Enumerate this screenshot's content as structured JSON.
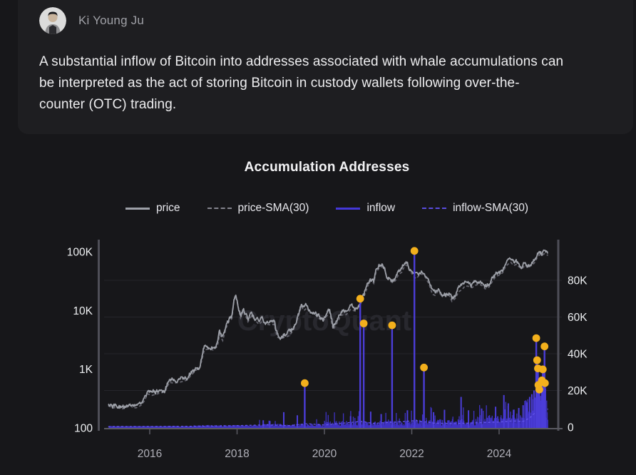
{
  "theme": {
    "page_bg": "#17171a",
    "card_bg": "#1e1e21",
    "text_primary": "#ededef",
    "text_secondary": "#9fa0a6",
    "title_color": "#f3f3f5",
    "legend_text": "#e9e9ee",
    "watermark_color": "#28282e"
  },
  "post": {
    "author": "Ki Young Ju",
    "text_lines": [
      "A substantial inflow of Bitcoin into addresses associated with whale accumulations can",
      "be interpreted as the act of storing Bitcoin in custody wallets following over-the-",
      "counter (OTC) trading."
    ]
  },
  "chart": {
    "title": "Accumulation Addresses",
    "watermark": "CryptoQuant",
    "legend": [
      {
        "label": "price",
        "color": "#9da0a8",
        "style": "solid"
      },
      {
        "label": "price-SMA(30)",
        "color": "#84848e",
        "style": "dashed"
      },
      {
        "label": "inflow",
        "color": "#4438d8",
        "style": "solid"
      },
      {
        "label": "inflow-SMA(30)",
        "color": "#5a4ce0",
        "style": "dashed"
      }
    ]
  },
  "chart_data": {
    "type": "line+bar",
    "title": "Accumulation Addresses",
    "x_axis": {
      "range": [
        2015.0,
        2025.15
      ],
      "ticks": [
        2016,
        2018,
        2020,
        2022,
        2024
      ],
      "labels": [
        "2016",
        "2018",
        "2020",
        "2022",
        "2024"
      ]
    },
    "left_axis": {
      "scale": "log",
      "series": "price",
      "ticks": [
        {
          "value": 100,
          "label": "100"
        },
        {
          "value": 1000,
          "label": "1K"
        },
        {
          "value": 10000,
          "label": "10K"
        },
        {
          "value": 100000,
          "label": "100K"
        }
      ]
    },
    "right_axis": {
      "scale": "linear",
      "series": "inflow",
      "ticks": [
        {
          "value": 0,
          "label": "0"
        },
        {
          "value": 20000,
          "label": "20K"
        },
        {
          "value": 40000,
          "label": "40K"
        },
        {
          "value": 60000,
          "label": "60K"
        },
        {
          "value": 80000,
          "label": "80K"
        }
      ]
    },
    "price_series": [
      [
        2015.05,
        265
      ],
      [
        2015.15,
        240
      ],
      [
        2015.25,
        250
      ],
      [
        2015.35,
        232
      ],
      [
        2015.45,
        240
      ],
      [
        2015.55,
        272
      ],
      [
        2015.62,
        240
      ],
      [
        2015.7,
        245
      ],
      [
        2015.8,
        268
      ],
      [
        2015.88,
        320
      ],
      [
        2015.95,
        420
      ],
      [
        2016.05,
        395
      ],
      [
        2016.15,
        415
      ],
      [
        2016.25,
        435
      ],
      [
        2016.35,
        455
      ],
      [
        2016.45,
        660
      ],
      [
        2016.55,
        640
      ],
      [
        2016.65,
        655
      ],
      [
        2016.75,
        680
      ],
      [
        2016.85,
        720
      ],
      [
        2016.95,
        870
      ],
      [
        2017.05,
        1050
      ],
      [
        2017.15,
        1180
      ],
      [
        2017.25,
        2350
      ],
      [
        2017.35,
        2450
      ],
      [
        2017.45,
        2350
      ],
      [
        2017.55,
        2700
      ],
      [
        2017.6,
        4300
      ],
      [
        2017.67,
        3400
      ],
      [
        2017.75,
        5600
      ],
      [
        2017.82,
        7300
      ],
      [
        2017.88,
        8000
      ],
      [
        2017.93,
        16800
      ],
      [
        2017.97,
        19200
      ],
      [
        2018.02,
        13500
      ],
      [
        2018.08,
        8300
      ],
      [
        2018.15,
        11000
      ],
      [
        2018.25,
        7100
      ],
      [
        2018.33,
        8900
      ],
      [
        2018.42,
        7500
      ],
      [
        2018.5,
        6400
      ],
      [
        2018.58,
        7300
      ],
      [
        2018.65,
        6500
      ],
      [
        2018.75,
        6300
      ],
      [
        2018.85,
        6400
      ],
      [
        2018.92,
        3900
      ],
      [
        2019.0,
        3650
      ],
      [
        2019.1,
        3900
      ],
      [
        2019.2,
        4100
      ],
      [
        2019.3,
        5300
      ],
      [
        2019.4,
        8500
      ],
      [
        2019.47,
        12900
      ],
      [
        2019.53,
        11000
      ],
      [
        2019.6,
        12200
      ],
      [
        2019.68,
        10200
      ],
      [
        2019.78,
        9600
      ],
      [
        2019.88,
        8000
      ],
      [
        2019.97,
        7300
      ],
      [
        2020.05,
        8800
      ],
      [
        2020.12,
        10300
      ],
      [
        2020.2,
        5200
      ],
      [
        2020.3,
        7000
      ],
      [
        2020.38,
        9200
      ],
      [
        2020.5,
        9400
      ],
      [
        2020.6,
        11500
      ],
      [
        2020.7,
        10800
      ],
      [
        2020.8,
        13200
      ],
      [
        2020.88,
        17000
      ],
      [
        2020.95,
        23500
      ],
      [
        2021.02,
        32500
      ],
      [
        2021.08,
        36000
      ],
      [
        2021.13,
        32000
      ],
      [
        2021.18,
        49000
      ],
      [
        2021.25,
        57500
      ],
      [
        2021.3,
        59500
      ],
      [
        2021.33,
        63500
      ],
      [
        2021.38,
        55000
      ],
      [
        2021.43,
        39000
      ],
      [
        2021.5,
        35500
      ],
      [
        2021.57,
        32500
      ],
      [
        2021.63,
        36000
      ],
      [
        2021.7,
        45500
      ],
      [
        2021.77,
        49500
      ],
      [
        2021.83,
        62000
      ],
      [
        2021.87,
        66500
      ],
      [
        2021.93,
        57500
      ],
      [
        2022.0,
        47500
      ],
      [
        2022.05,
        41500
      ],
      [
        2022.1,
        38500
      ],
      [
        2022.17,
        44000
      ],
      [
        2022.25,
        46500
      ],
      [
        2022.32,
        40000
      ],
      [
        2022.4,
        30500
      ],
      [
        2022.47,
        21000
      ],
      [
        2022.53,
        20000
      ],
      [
        2022.6,
        23500
      ],
      [
        2022.68,
        20000
      ],
      [
        2022.77,
        19800
      ],
      [
        2022.85,
        20500
      ],
      [
        2022.92,
        15800
      ],
      [
        2023.0,
        17800
      ],
      [
        2023.07,
        23000
      ],
      [
        2023.15,
        25000
      ],
      [
        2023.22,
        29000
      ],
      [
        2023.3,
        28500
      ],
      [
        2023.38,
        27000
      ],
      [
        2023.45,
        29500
      ],
      [
        2023.52,
        30800
      ],
      [
        2023.6,
        29800
      ],
      [
        2023.68,
        25800
      ],
      [
        2023.77,
        27800
      ],
      [
        2023.85,
        35000
      ],
      [
        2023.93,
        42500
      ],
      [
        2024.0,
        44000
      ],
      [
        2024.08,
        48500
      ],
      [
        2024.15,
        62000
      ],
      [
        2024.22,
        69500
      ],
      [
        2024.27,
        73000
      ],
      [
        2024.33,
        64500
      ],
      [
        2024.4,
        67500
      ],
      [
        2024.47,
        60000
      ],
      [
        2024.53,
        57500
      ],
      [
        2024.6,
        65500
      ],
      [
        2024.65,
        58500
      ],
      [
        2024.72,
        63000
      ],
      [
        2024.78,
        68000
      ],
      [
        2024.83,
        75000
      ],
      [
        2024.88,
        91500
      ],
      [
        2024.93,
        98000
      ],
      [
        2024.98,
        94500
      ],
      [
        2025.03,
        102500
      ],
      [
        2025.08,
        98000
      ],
      [
        2025.12,
        96500
      ]
    ],
    "inflow_spikes_marked": [
      [
        2019.55,
        24000
      ],
      [
        2020.82,
        70000
      ],
      [
        2020.9,
        56500
      ],
      [
        2021.55,
        55500
      ],
      [
        2022.06,
        96000
      ],
      [
        2022.28,
        32500
      ],
      [
        2024.85,
        48500
      ],
      [
        2024.87,
        36500
      ],
      [
        2024.89,
        32000
      ],
      [
        2024.9,
        23000
      ],
      [
        2024.92,
        20500
      ],
      [
        2024.98,
        25500
      ],
      [
        2025.0,
        31500
      ],
      [
        2025.04,
        44000
      ],
      [
        2025.05,
        24000
      ]
    ],
    "inflow_spikes_unmarked": [
      [
        2018.6,
        3800
      ],
      [
        2018.75,
        3200
      ],
      [
        2019.07,
        8200
      ],
      [
        2019.38,
        6500
      ],
      [
        2020.6,
        6000
      ],
      [
        2021.06,
        8500
      ],
      [
        2021.3,
        7200
      ],
      [
        2021.9,
        9200
      ],
      [
        2022.5,
        8200
      ],
      [
        2022.75,
        9500
      ],
      [
        2023.13,
        16500
      ],
      [
        2023.3,
        9200
      ],
      [
        2023.6,
        10200
      ],
      [
        2023.92,
        11200
      ],
      [
        2024.11,
        17500
      ],
      [
        2024.21,
        13000
      ],
      [
        2024.33,
        9500
      ],
      [
        2024.45,
        10500
      ],
      [
        2024.55,
        12000
      ],
      [
        2024.63,
        13500
      ],
      [
        2024.7,
        16500
      ],
      [
        2024.75,
        18000
      ],
      [
        2024.8,
        20000
      ],
      [
        2024.94,
        17000
      ],
      [
        2025.02,
        19000
      ],
      [
        2025.06,
        21000
      ]
    ],
    "inflow_sma": [
      [
        2015.05,
        350
      ],
      [
        2016,
        400
      ],
      [
        2017,
        550
      ],
      [
        2017.9,
        800
      ],
      [
        2018.7,
        1300
      ],
      [
        2019.2,
        900
      ],
      [
        2019.6,
        1900
      ],
      [
        2020,
        1200
      ],
      [
        2020.85,
        3200
      ],
      [
        2021.1,
        2100
      ],
      [
        2021.6,
        2700
      ],
      [
        2022.1,
        3600
      ],
      [
        2022.5,
        2200
      ],
      [
        2023,
        2000
      ],
      [
        2023.5,
        2400
      ],
      [
        2024,
        2800
      ],
      [
        2024.3,
        3400
      ],
      [
        2024.55,
        3200
      ],
      [
        2024.7,
        5000
      ],
      [
        2024.85,
        8500
      ],
      [
        2024.95,
        11800
      ],
      [
        2025.02,
        10000
      ],
      [
        2025.08,
        9000
      ],
      [
        2025.12,
        10000
      ]
    ],
    "colors": {
      "price": "#9da0a8",
      "price_sma": "#63636d",
      "inflow_bar": "#4134cc",
      "inflow_spike": "#4b3dd8",
      "inflow_sma": "#6557ea",
      "marker": "#f3b01c",
      "grid": "#26262b",
      "axis_bar": "#4e4e57",
      "axis_line": "#5a5a62",
      "y_label": "#eef0f2",
      "x_label": "#b0b0b8"
    }
  }
}
